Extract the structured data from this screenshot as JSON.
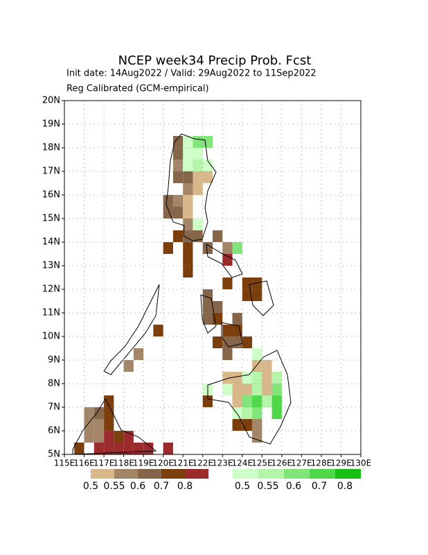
{
  "chart_data": {
    "type": "gridmap",
    "title": "NCEP week34 Precip Prob. Fcst",
    "subtitle": "Init date: 14Aug2022 / Valid: 29Aug2022 to 11Sep2022",
    "subtitle2": "Reg Calibrated (GCM-empirical)",
    "xlim": [
      115,
      130
    ],
    "ylim": [
      5,
      20
    ],
    "cell_size": 0.5,
    "xticks": [
      {
        "value": 115,
        "label": "115E"
      },
      {
        "value": 116,
        "label": "116E"
      },
      {
        "value": 117,
        "label": "117E"
      },
      {
        "value": 118,
        "label": "118E"
      },
      {
        "value": 119,
        "label": "119E"
      },
      {
        "value": 120,
        "label": "120E"
      },
      {
        "value": 121,
        "label": "121E"
      },
      {
        "value": 122,
        "label": "122E"
      },
      {
        "value": 123,
        "label": "123E"
      },
      {
        "value": 124,
        "label": "124E"
      },
      {
        "value": 125,
        "label": "125E"
      },
      {
        "value": 126,
        "label": "126E"
      },
      {
        "value": 127,
        "label": "127E"
      },
      {
        "value": 128,
        "label": "128E"
      },
      {
        "value": 129,
        "label": "129E"
      },
      {
        "value": 130,
        "label": "130E"
      }
    ],
    "yticks": [
      {
        "value": 5,
        "label": "5N"
      },
      {
        "value": 6,
        "label": "6N"
      },
      {
        "value": 7,
        "label": "7N"
      },
      {
        "value": 8,
        "label": "8N"
      },
      {
        "value": 9,
        "label": "9N"
      },
      {
        "value": 10,
        "label": "10N"
      },
      {
        "value": 11,
        "label": "11N"
      },
      {
        "value": 12,
        "label": "12N"
      },
      {
        "value": 13,
        "label": "13N"
      },
      {
        "value": 14,
        "label": "14N"
      },
      {
        "value": 15,
        "label": "15N"
      },
      {
        "value": 16,
        "label": "16N"
      },
      {
        "value": 17,
        "label": "17N"
      },
      {
        "value": 18,
        "label": "18N"
      },
      {
        "value": 19,
        "label": "19N"
      },
      {
        "value": 20,
        "label": "20N"
      }
    ],
    "grid": true,
    "legend": {
      "dry": {
        "colors": [
          "#d8b88a",
          "#a38567",
          "#85664a",
          "#7b3f0e",
          "#9c2b2e"
        ],
        "labels": [
          0.5,
          0.55,
          0.6,
          0.7,
          0.8
        ]
      },
      "wet": {
        "colors": [
          "#cfffc8",
          "#b4f5aa",
          "#82e57a",
          "#50d84a",
          "#18c015"
        ],
        "labels": [
          0.5,
          0.55,
          0.6,
          0.7,
          0.8
        ]
      }
    },
    "cells": [
      [
        120.5,
        18,
        0.6,
        "dry"
      ],
      [
        120.5,
        17.5,
        0.6,
        "dry"
      ],
      [
        120.5,
        17,
        0.55,
        "dry"
      ],
      [
        120.5,
        16.5,
        0.6,
        "dry"
      ],
      [
        121,
        18,
        0.5,
        "wet"
      ],
      [
        121.5,
        18,
        0.6,
        "wet"
      ],
      [
        122,
        18,
        0.6,
        "wet"
      ],
      [
        121,
        17.5,
        0.5,
        "wet"
      ],
      [
        121.5,
        17.5,
        0.5,
        "wet"
      ],
      [
        121,
        17,
        0.5,
        "wet"
      ],
      [
        121.5,
        17,
        0.55,
        "wet"
      ],
      [
        122,
        17,
        0.5,
        "wet"
      ],
      [
        121,
        16.5,
        0.6,
        "dry"
      ],
      [
        121.5,
        16.5,
        0.5,
        "dry"
      ],
      [
        122,
        16.5,
        0.5,
        "dry"
      ],
      [
        121,
        16,
        0.55,
        "dry"
      ],
      [
        121.5,
        16,
        0.5,
        "dry"
      ],
      [
        120,
        15.5,
        0.6,
        "dry"
      ],
      [
        120.5,
        15.5,
        0.55,
        "dry"
      ],
      [
        121,
        15.5,
        0.5,
        "dry"
      ],
      [
        120,
        15,
        0.6,
        "dry"
      ],
      [
        120.5,
        15,
        0.6,
        "dry"
      ],
      [
        121,
        15,
        0.5,
        "dry"
      ],
      [
        121,
        14.5,
        0.55,
        "dry"
      ],
      [
        121.5,
        14.5,
        0.5,
        "wet"
      ],
      [
        120.5,
        14,
        0.7,
        "dry"
      ],
      [
        121,
        14,
        0.6,
        "dry"
      ],
      [
        121.5,
        14,
        0.6,
        "dry"
      ],
      [
        122.5,
        14,
        0.6,
        "dry"
      ],
      [
        120,
        13.5,
        0.7,
        "dry"
      ],
      [
        121,
        13.5,
        0.7,
        "dry"
      ],
      [
        122,
        13.5,
        0.6,
        "dry"
      ],
      [
        123.5,
        13.5,
        0.6,
        "wet"
      ],
      [
        123,
        13.5,
        0.55,
        "dry"
      ],
      [
        121,
        13,
        0.7,
        "dry"
      ],
      [
        123,
        13,
        0.8,
        "dry"
      ],
      [
        121,
        12.5,
        0.7,
        "dry"
      ],
      [
        123,
        12,
        0.7,
        "dry"
      ],
      [
        124,
        12,
        0.7,
        "dry"
      ],
      [
        124.5,
        12,
        0.7,
        "dry"
      ],
      [
        124,
        11.5,
        0.7,
        "dry"
      ],
      [
        124.5,
        11.5,
        0.7,
        "dry"
      ],
      [
        122,
        11.5,
        0.6,
        "dry"
      ],
      [
        122,
        11,
        0.6,
        "dry"
      ],
      [
        122.5,
        11,
        0.6,
        "dry"
      ],
      [
        122,
        10.5,
        0.6,
        "dry"
      ],
      [
        122.5,
        10.5,
        0.7,
        "dry"
      ],
      [
        123.5,
        10.5,
        0.6,
        "dry"
      ],
      [
        123,
        10,
        0.7,
        "dry"
      ],
      [
        123.5,
        10,
        0.7,
        "dry"
      ],
      [
        122.5,
        9.5,
        0.7,
        "dry"
      ],
      [
        123,
        9.5,
        0.6,
        "dry"
      ],
      [
        123.5,
        9.5,
        0.6,
        "dry"
      ],
      [
        124,
        9.5,
        0.7,
        "dry"
      ],
      [
        123,
        9,
        0.6,
        "dry"
      ],
      [
        119.5,
        10,
        0.7,
        "dry"
      ],
      [
        118.5,
        9,
        0.55,
        "dry"
      ],
      [
        118,
        8.5,
        0.55,
        "dry"
      ],
      [
        124.5,
        9,
        0.5,
        "wet"
      ],
      [
        124.5,
        8.5,
        0.5,
        "dry"
      ],
      [
        125,
        8.5,
        0.5,
        "dry"
      ],
      [
        123,
        8,
        0.5,
        "dry"
      ],
      [
        123.5,
        8,
        0.5,
        "dry"
      ],
      [
        124,
        8,
        0.5,
        "wet"
      ],
      [
        124.5,
        8,
        0.55,
        "wet"
      ],
      [
        125,
        8,
        0.5,
        "dry"
      ],
      [
        125.5,
        8,
        0.55,
        "wet"
      ],
      [
        122,
        7.5,
        0.5,
        "wet"
      ],
      [
        123,
        7.5,
        0.5,
        "wet"
      ],
      [
        123.5,
        7.5,
        0.5,
        "dry"
      ],
      [
        124,
        7.5,
        0.5,
        "dry"
      ],
      [
        124.5,
        7.5,
        0.55,
        "wet"
      ],
      [
        125,
        7.5,
        0.5,
        "dry"
      ],
      [
        125.5,
        7.5,
        0.6,
        "wet"
      ],
      [
        122,
        7,
        0.7,
        "dry"
      ],
      [
        123.5,
        7,
        0.5,
        "dry"
      ],
      [
        124,
        7,
        0.6,
        "wet"
      ],
      [
        124.5,
        7,
        0.7,
        "wet"
      ],
      [
        125,
        7,
        0.55,
        "wet"
      ],
      [
        125.5,
        7,
        0.7,
        "wet"
      ],
      [
        123.5,
        6.5,
        0.5,
        "wet"
      ],
      [
        124,
        6.5,
        0.55,
        "wet"
      ],
      [
        124.5,
        6.5,
        0.6,
        "wet"
      ],
      [
        125.5,
        6.5,
        0.7,
        "wet"
      ],
      [
        123.5,
        6,
        0.7,
        "dry"
      ],
      [
        124,
        6,
        0.7,
        "dry"
      ],
      [
        124.5,
        6,
        0.55,
        "dry"
      ],
      [
        124.5,
        5.5,
        0.55,
        "dry"
      ],
      [
        115.5,
        5,
        0.7,
        "dry"
      ],
      [
        116,
        5.5,
        0.55,
        "dry"
      ],
      [
        116,
        6,
        0.55,
        "dry"
      ],
      [
        116,
        6.5,
        0.55,
        "dry"
      ],
      [
        116.5,
        6,
        0.55,
        "dry"
      ],
      [
        116.5,
        6.5,
        0.6,
        "dry"
      ],
      [
        117,
        7,
        0.7,
        "dry"
      ],
      [
        117,
        6.5,
        0.7,
        "dry"
      ],
      [
        117,
        6,
        0.7,
        "dry"
      ],
      [
        117,
        5.5,
        0.8,
        "dry"
      ],
      [
        117,
        5,
        0.8,
        "dry"
      ],
      [
        116.5,
        5.5,
        0.55,
        "dry"
      ],
      [
        116.5,
        5,
        0.8,
        "dry"
      ],
      [
        117.5,
        5.5,
        0.7,
        "dry"
      ],
      [
        118,
        5.5,
        0.8,
        "dry"
      ],
      [
        117.5,
        5,
        0.8,
        "dry"
      ],
      [
        118,
        5,
        0.8,
        "dry"
      ],
      [
        118.5,
        5,
        0.8,
        "dry"
      ],
      [
        119,
        5,
        0.8,
        "dry"
      ],
      [
        120,
        5,
        0.8,
        "dry"
      ]
    ]
  }
}
